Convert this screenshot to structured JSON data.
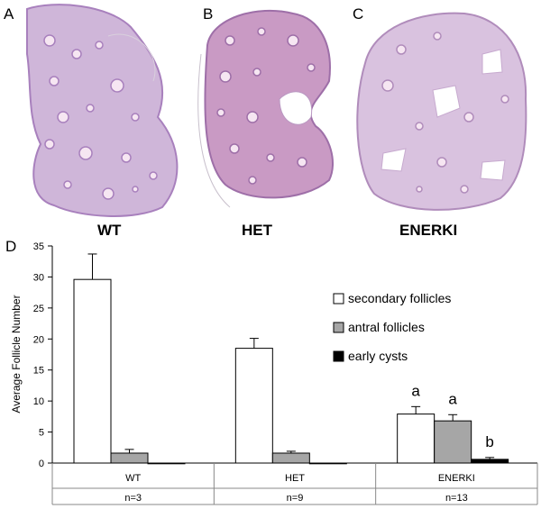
{
  "panels": {
    "a": {
      "letter": "A",
      "genotype": "WT"
    },
    "b": {
      "letter": "B",
      "genotype": "HET"
    },
    "c": {
      "letter": "C",
      "genotype": "ENERKI"
    },
    "d": {
      "letter": "D"
    }
  },
  "colors": {
    "tissue_base": "#cfb6d9",
    "tissue_dark": "#a880bd",
    "tissue_het": "#c99ac4",
    "follicle": "#f6e6f2",
    "secondary_bar": "#ffffff",
    "antral_bar": "#a6a6a6",
    "cyst_bar": "#000000"
  },
  "chart_data": {
    "type": "bar",
    "ylabel": "Average Follicle Number",
    "ylim": [
      0,
      35
    ],
    "yticks": [
      0,
      5,
      10,
      15,
      20,
      25,
      30,
      35
    ],
    "categories": [
      "WT",
      "HET",
      "ENERKI"
    ],
    "sample_sizes": [
      "n=3",
      "n=9",
      "n=13"
    ],
    "series": [
      {
        "name": "secondary follicles",
        "values": [
          29.6,
          18.5,
          7.9
        ],
        "errors": [
          4.1,
          1.6,
          1.2
        ],
        "color": "#ffffff"
      },
      {
        "name": "antral follicles",
        "values": [
          1.6,
          1.6,
          6.8
        ],
        "errors": [
          0.6,
          0.3,
          1.0
        ],
        "color": "#a6a6a6"
      },
      {
        "name": "early cysts",
        "values": [
          0,
          0,
          0.6
        ],
        "errors": [
          0,
          0,
          0.3
        ],
        "color": "#000000"
      }
    ],
    "annotations": [
      {
        "category": "ENERKI",
        "series": "secondary follicles",
        "text": "a"
      },
      {
        "category": "ENERKI",
        "series": "antral follicles",
        "text": "a"
      },
      {
        "category": "ENERKI",
        "series": "early cysts",
        "text": "b"
      }
    ],
    "legend_position": "right",
    "grid": false
  }
}
